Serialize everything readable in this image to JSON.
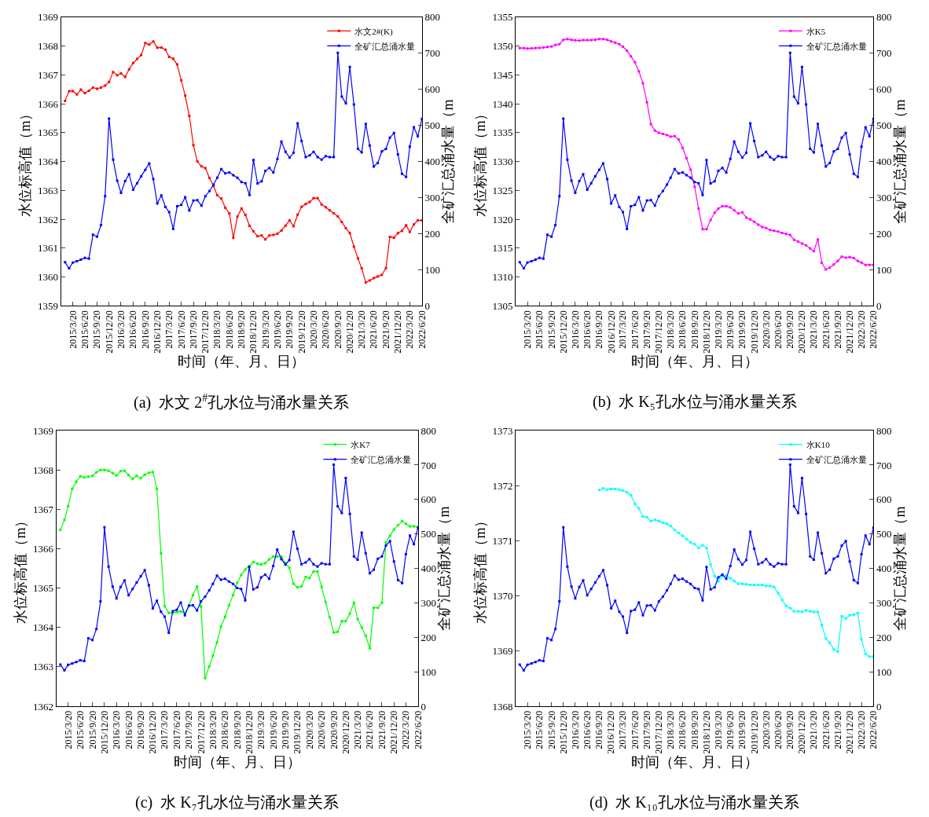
{
  "chart_data": [
    {
      "type": "line",
      "title": "(a)  水文 2$^{#}$孔水位与涌水量关系",
      "xlabel": "时间（年、月、日）",
      "ylabel": "水位标高值（m）",
      "y2label": "全矿汇总涌水量（m",
      "legend": "top right",
      "marker": "square",
      "x": [
        "2015-01-20",
        "2015-02-20",
        "2015-03-20",
        "2015-04-20",
        "2015-05-20",
        "2015-06-20",
        "2015-07-20",
        "2015-08-20",
        "2015-09-20",
        "2015-10-20",
        "2015-11-20",
        "2015-12-20",
        "2016-01-20",
        "2016-02-20",
        "2016-03-20",
        "2016-04-20",
        "2016-05-20",
        "2016-06-20",
        "2016-07-20",
        "2016-08-20",
        "2016-09-20",
        "2016-10-20",
        "2016-11-20",
        "2016-12-20",
        "2017-01-20",
        "2017-02-20",
        "2017-03-20",
        "2017-04-20",
        "2017-05-20",
        "2017-06-20",
        "2017-07-20",
        "2017-08-20",
        "2017-09-20",
        "2017-10-20",
        "2017-11-20",
        "2017-12-20",
        "2018-01-20",
        "2018-02-20",
        "2018-03-20",
        "2018-04-20",
        "2018-05-20",
        "2018-06-20",
        "2018-07-20",
        "2018-08-20",
        "2018-09-20",
        "2018-10-20",
        "2018-11-20",
        "2018-12-20",
        "2019-01-20",
        "2019-02-20",
        "2019-03-20",
        "2019-04-20",
        "2019-05-20",
        "2019-06-20",
        "2019-07-20",
        "2019-08-20",
        "2019-09-20",
        "2019-10-20",
        "2019-11-20",
        "2019-12-20",
        "2020-01-20",
        "2020-02-20",
        "2020-03-20",
        "2020-04-20",
        "2020-05-20",
        "2020-06-20",
        "2020-07-20",
        "2020-08-20",
        "2020-09-20",
        "2020-10-20",
        "2020-11-20",
        "2020-12-20",
        "2021-01-20",
        "2021-02-20",
        "2021-03-20",
        "2021-04-20",
        "2021-05-20",
        "2021-06-20",
        "2021-07-20",
        "2021-08-20",
        "2021-09-20",
        "2021-10-20",
        "2021-11-20",
        "2021-12-20",
        "2022-01-20",
        "2022-02-20",
        "2022-03-20",
        "2022-04-20",
        "2022-05-20",
        "2022-06-20"
      ],
      "xlim": [
        "2014-12-20",
        "2022-06-20"
      ],
      "xticks": [
        {
          "value": "2015-03-20",
          "label": "2015/3/20"
        },
        {
          "value": "2015-06-20",
          "label": "2015/6/20"
        },
        {
          "value": "2015-09-20",
          "label": "2015/9/20"
        },
        {
          "value": "2015-12-20",
          "label": "2015/12/20"
        },
        {
          "value": "2016-03-20",
          "label": "2016/3/20"
        },
        {
          "value": "2016-06-20",
          "label": "2016/6/20"
        },
        {
          "value": "2016-09-20",
          "label": "2016/9/20"
        },
        {
          "value": "2016-12-20",
          "label": "2016/12/20"
        },
        {
          "value": "2017-03-20",
          "label": "2017/3/20"
        },
        {
          "value": "2017-06-20",
          "label": "2017/6/20"
        },
        {
          "value": "2017-09-20",
          "label": "2017/9/20"
        },
        {
          "value": "2017-12-20",
          "label": "2017/12/20"
        },
        {
          "value": "2018-03-20",
          "label": "2018/3/20"
        },
        {
          "value": "2018-06-20",
          "label": "2018/6/20"
        },
        {
          "value": "2018-09-20",
          "label": "2018/9/20"
        },
        {
          "value": "2018-12-20",
          "label": "2018/12/20"
        },
        {
          "value": "2019-03-20",
          "label": "2019/3/20"
        },
        {
          "value": "2019-06-20",
          "label": "2019/6/20"
        },
        {
          "value": "2019-09-20",
          "label": "2019/9/20"
        },
        {
          "value": "2019-12-20",
          "label": "2019/12/20"
        },
        {
          "value": "2020-03-20",
          "label": "2020/3/20"
        },
        {
          "value": "2020-06-20",
          "label": "2020/6/20"
        },
        {
          "value": "2020-09-20",
          "label": "2020/9/20"
        },
        {
          "value": "2020-12-20",
          "label": "2020/12/20"
        },
        {
          "value": "2021-03-20",
          "label": "2021/3/20"
        },
        {
          "value": "2021-06-20",
          "label": "2021/6/20"
        },
        {
          "value": "2021-09-20",
          "label": "2021/9/20"
        },
        {
          "value": "2021-12-20",
          "label": "2021/12/20"
        },
        {
          "value": "2022-03-20",
          "label": "2022/3/20"
        },
        {
          "value": "2022-06-20",
          "label": "2022/6/20"
        }
      ],
      "ylim": [
        1359,
        1369
      ],
      "yticks": [
        1359,
        1360,
        1361,
        1362,
        1363,
        1364,
        1365,
        1366,
        1367,
        1368,
        1369
      ],
      "y2lim": [
        0,
        800
      ],
      "y2ticks": [
        0,
        100,
        200,
        300,
        400,
        500,
        600,
        700,
        800
      ],
      "series": [
        {
          "name": "水文2#(K)",
          "color": "#ff0000",
          "values": [
            1366.1,
            1366.44,
            1366.44,
            1366.32,
            1366.49,
            1366.37,
            1366.45,
            1366.56,
            1366.52,
            1366.56,
            1366.63,
            1366.76,
            1367.1,
            1366.99,
            1367.05,
            1366.93,
            1367.19,
            1367.41,
            1367.55,
            1367.69,
            1368.1,
            1368.05,
            1368.16,
            1367.94,
            1367.95,
            1367.87,
            1367.62,
            1367.56,
            1367.36,
            1366.81,
            1366.28,
            1365.58,
            1364.57,
            1364.0,
            1363.83,
            1363.77,
            1363.43,
            1363.15,
            1362.83,
            1362.72,
            1362.4,
            1362.2,
            1361.36,
            1362.09,
            1362.37,
            1362.15,
            1361.77,
            1361.58,
            1361.41,
            1361.44,
            1361.3,
            1361.44,
            1361.46,
            1361.5,
            1361.61,
            1361.78,
            1361.96,
            1361.76,
            1362.16,
            1362.43,
            1362.53,
            1362.6,
            1362.73,
            1362.73,
            1362.51,
            1362.42,
            1362.31,
            1362.21,
            1362.1,
            1361.91,
            1361.69,
            1361.52,
            1361.05,
            1360.64,
            1360.3,
            1359.81,
            1359.88,
            1359.96,
            1360.02,
            1360.07,
            1360.31,
            1361.39,
            1361.36,
            1361.52,
            1361.6,
            1361.79,
            1361.56,
            1361.82,
            1361.96,
            1361.96
          ]
        },
        {
          "name": "全矿汇总涌水量",
          "color": "#0000ff",
          "axis": "y2",
          "values": [
            121,
            104,
            120,
            124,
            128,
            133,
            131,
            197,
            192,
            224,
            304,
            519,
            405,
            347,
            313,
            346,
            365,
            322,
            340,
            359,
            377,
            395,
            351,
            284,
            306,
            274,
            260,
            213,
            276,
            280,
            301,
            264,
            292,
            293,
            278,
            304,
            318,
            336,
            355,
            379,
            367,
            370,
            362,
            355,
            343,
            340,
            307,
            404,
            339,
            345,
            374,
            382,
            370,
            407,
            455,
            427,
            411,
            424,
            506,
            457,
            412,
            417,
            427,
            412,
            405,
            415,
            412,
            412,
            701,
            580,
            561,
            662,
            558,
            435,
            425,
            504,
            444,
            386,
            396,
            428,
            435,
            466,
            479,
            420,
            366,
            357,
            441,
            495,
            470,
            518
          ]
        }
      ]
    },
    {
      "type": "line",
      "title": "(b)  水 K₅孔水位与涌水量关系",
      "xlabel": "时间（年、月、日）",
      "ylabel": "水位标高值（m）",
      "y2label": "全矿汇总涌水量（m",
      "legend": "top right",
      "marker": "square",
      "x": [
        "2015-01-20",
        "2015-02-20",
        "2015-03-20",
        "2015-04-20",
        "2015-05-20",
        "2015-06-20",
        "2015-07-20",
        "2015-08-20",
        "2015-09-20",
        "2015-10-20",
        "2015-11-20",
        "2015-12-20",
        "2016-01-20",
        "2016-02-20",
        "2016-03-20",
        "2016-04-20",
        "2016-05-20",
        "2016-06-20",
        "2016-07-20",
        "2016-08-20",
        "2016-09-20",
        "2016-10-20",
        "2016-11-20",
        "2016-12-20",
        "2017-01-20",
        "2017-02-20",
        "2017-03-20",
        "2017-04-20",
        "2017-05-20",
        "2017-06-20",
        "2017-07-20",
        "2017-08-20",
        "2017-09-20",
        "2017-10-20",
        "2017-11-20",
        "2017-12-20",
        "2018-01-20",
        "2018-02-20",
        "2018-03-20",
        "2018-04-20",
        "2018-05-20",
        "2018-06-20",
        "2018-07-20",
        "2018-08-20",
        "2018-09-20",
        "2018-10-20",
        "2018-11-20",
        "2018-12-20",
        "2019-01-20",
        "2019-02-20",
        "2019-03-20",
        "2019-04-20",
        "2019-05-20",
        "2019-06-20",
        "2019-07-20",
        "2019-08-20",
        "2019-09-20",
        "2019-10-20",
        "2019-11-20",
        "2019-12-20",
        "2020-01-20",
        "2020-02-20",
        "2020-03-20",
        "2020-04-20",
        "2020-05-20",
        "2020-06-20",
        "2020-07-20",
        "2020-08-20",
        "2020-09-20",
        "2020-10-20",
        "2020-11-20",
        "2020-12-20",
        "2021-01-20",
        "2021-02-20",
        "2021-03-20",
        "2021-04-20",
        "2021-05-20",
        "2021-06-20",
        "2021-07-20",
        "2021-08-20",
        "2021-09-20",
        "2021-10-20",
        "2021-11-20",
        "2021-12-20",
        "2022-01-20",
        "2022-02-20",
        "2022-03-20",
        "2022-04-20",
        "2022-05-20",
        "2022-06-20"
      ],
      "xlim": [
        "2014-12-20",
        "2022-06-20"
      ],
      "xticks": [
        {
          "value": "2015-03-20",
          "label": "2015/3/20"
        },
        {
          "value": "2015-06-20",
          "label": "2015/6/20"
        },
        {
          "value": "2015-09-20",
          "label": "2015/9/20"
        },
        {
          "value": "2015-12-20",
          "label": "2015/12/20"
        },
        {
          "value": "2016-03-20",
          "label": "2016/3/20"
        },
        {
          "value": "2016-06-20",
          "label": "2016/6/20"
        },
        {
          "value": "2016-09-20",
          "label": "2016/9/20"
        },
        {
          "value": "2016-12-20",
          "label": "2016/12/20"
        },
        {
          "value": "2017-03-20",
          "label": "2017/3/20"
        },
        {
          "value": "2017-06-20",
          "label": "2017/6/20"
        },
        {
          "value": "2017-09-20",
          "label": "2017/9/20"
        },
        {
          "value": "2017-12-20",
          "label": "2017/12/20"
        },
        {
          "value": "2018-03-20",
          "label": "2018/3/20"
        },
        {
          "value": "2018-06-20",
          "label": "2018/6/20"
        },
        {
          "value": "2018-09-20",
          "label": "2018/9/20"
        },
        {
          "value": "2018-12-20",
          "label": "2018/12/20"
        },
        {
          "value": "2019-03-20",
          "label": "2019/3/20"
        },
        {
          "value": "2019-06-20",
          "label": "2019/6/20"
        },
        {
          "value": "2019-09-20",
          "label": "2019/9/20"
        },
        {
          "value": "2019-12-20",
          "label": "2019/12/20"
        },
        {
          "value": "2020-03-20",
          "label": "2020/3/20"
        },
        {
          "value": "2020-06-20",
          "label": "2020/6/20"
        },
        {
          "value": "2020-09-20",
          "label": "2020/9/20"
        },
        {
          "value": "2020-12-20",
          "label": "2020/12/20"
        },
        {
          "value": "2021-03-20",
          "label": "2021/3/20"
        },
        {
          "value": "2021-06-20",
          "label": "2021/6/20"
        },
        {
          "value": "2021-09-20",
          "label": "2021/9/20"
        },
        {
          "value": "2021-12-20",
          "label": "2021/12/20"
        },
        {
          "value": "2022-03-20",
          "label": "2022/3/20"
        },
        {
          "value": "2022-06-20",
          "label": "2022/6/20"
        }
      ],
      "ylim": [
        1305,
        1355
      ],
      "yticks": [
        1305,
        1310,
        1315,
        1320,
        1325,
        1330,
        1335,
        1340,
        1345,
        1350,
        1355
      ],
      "y2lim": [
        0,
        800
      ],
      "y2ticks": [
        0,
        100,
        200,
        300,
        400,
        500,
        600,
        700,
        800
      ],
      "series": [
        {
          "name": "水K5",
          "color": "#ff00ff",
          "values": [
            1349.64,
            1349.64,
            1349.55,
            1349.59,
            1349.64,
            1349.68,
            1349.73,
            1349.82,
            1349.91,
            1350.17,
            1350.31,
            1351.07,
            1351.2,
            1351.07,
            1350.98,
            1350.93,
            1351.02,
            1351.02,
            1351.02,
            1351.07,
            1351.2,
            1351.2,
            1351.07,
            1350.8,
            1350.58,
            1350.31,
            1349.86,
            1349.19,
            1348.21,
            1347.18,
            1345.62,
            1343.56,
            1340.26,
            1336.46,
            1335.34,
            1334.98,
            1334.76,
            1334.58,
            1334.31,
            1334.4,
            1333.82,
            1332.35,
            1330.6,
            1328.59,
            1325.64,
            1321.85,
            1318.27,
            1318.27,
            1319.88,
            1321.13,
            1321.85,
            1322.25,
            1322.25,
            1322.07,
            1321.53,
            1321.0,
            1321.22,
            1320.28,
            1319.97,
            1319.57,
            1319.08,
            1318.67,
            1318.49,
            1318.14,
            1318.0,
            1317.87,
            1317.65,
            1317.47,
            1317.29,
            1316.44,
            1316.13,
            1315.81,
            1315.5,
            1314.96,
            1314.47,
            1316.53,
            1312.46,
            1311.3,
            1311.61,
            1312.15,
            1312.77,
            1313.53,
            1313.36,
            1313.44,
            1313.27,
            1312.77,
            1312.51,
            1312.1,
            1312.1,
            1312.1
          ]
        },
        {
          "name": "全矿汇总涌水量",
          "color": "#0000ff",
          "axis": "y2",
          "values": [
            121,
            104,
            120,
            124,
            128,
            133,
            131,
            197,
            192,
            224,
            304,
            519,
            405,
            347,
            313,
            346,
            365,
            322,
            340,
            359,
            377,
            395,
            351,
            284,
            306,
            274,
            260,
            213,
            276,
            280,
            301,
            264,
            292,
            293,
            278,
            304,
            318,
            336,
            355,
            379,
            367,
            370,
            362,
            355,
            343,
            340,
            307,
            404,
            339,
            345,
            374,
            382,
            370,
            407,
            455,
            427,
            411,
            424,
            506,
            457,
            412,
            417,
            427,
            412,
            405,
            415,
            412,
            412,
            701,
            580,
            561,
            662,
            558,
            435,
            425,
            504,
            444,
            386,
            396,
            428,
            435,
            466,
            479,
            420,
            366,
            357,
            441,
            495,
            470,
            518
          ]
        }
      ]
    },
    {
      "type": "line",
      "title": "(c)  水 K₇孔水位与涌水量关系",
      "xlabel": "时间（年、月、日）",
      "ylabel": "水位标高值（m）",
      "y2label": "全矿汇总涌水量（m",
      "legend": "top right",
      "marker": "square",
      "x": [
        "2015-01-20",
        "2015-02-20",
        "2015-03-20",
        "2015-04-20",
        "2015-05-20",
        "2015-06-20",
        "2015-07-20",
        "2015-08-20",
        "2015-09-20",
        "2015-10-20",
        "2015-11-20",
        "2015-12-20",
        "2016-01-20",
        "2016-02-20",
        "2016-03-20",
        "2016-04-20",
        "2016-05-20",
        "2016-06-20",
        "2016-07-20",
        "2016-08-20",
        "2016-09-20",
        "2016-10-20",
        "2016-11-20",
        "2016-12-20",
        "2017-01-20",
        "2017-02-20",
        "2017-03-20",
        "2017-04-20",
        "2017-05-20",
        "2017-06-20",
        "2017-07-20",
        "2017-08-20",
        "2017-09-20",
        "2017-10-20",
        "2017-11-20",
        "2017-12-20",
        "2018-01-20",
        "2018-02-20",
        "2018-03-20",
        "2018-04-20",
        "2018-05-20",
        "2018-06-20",
        "2018-07-20",
        "2018-08-20",
        "2018-09-20",
        "2018-10-20",
        "2018-11-20",
        "2018-12-20",
        "2019-01-20",
        "2019-02-20",
        "2019-03-20",
        "2019-04-20",
        "2019-05-20",
        "2019-06-20",
        "2019-07-20",
        "2019-08-20",
        "2019-09-20",
        "2019-10-20",
        "2019-11-20",
        "2019-12-20",
        "2020-01-20",
        "2020-02-20",
        "2020-03-20",
        "2020-04-20",
        "2020-05-20",
        "2020-06-20",
        "2020-07-20",
        "2020-08-20",
        "2020-09-20",
        "2020-10-20",
        "2020-11-20",
        "2020-12-20",
        "2021-01-20",
        "2021-02-20",
        "2021-03-20",
        "2021-04-20",
        "2021-05-20",
        "2021-06-20",
        "2021-07-20",
        "2021-08-20",
        "2021-09-20",
        "2021-10-20",
        "2021-11-20",
        "2021-12-20",
        "2022-01-20",
        "2022-02-20",
        "2022-03-20",
        "2022-04-20",
        "2022-05-20",
        "2022-06-20"
      ],
      "xlim": [
        "2014-12-20",
        "2022-06-20"
      ],
      "xticks": [
        {
          "value": "2015-03-20",
          "label": "2015/3/20"
        },
        {
          "value": "2015-06-20",
          "label": "2015/6/20"
        },
        {
          "value": "2015-09-20",
          "label": "2015/9/20"
        },
        {
          "value": "2015-12-20",
          "label": "2015/12/20"
        },
        {
          "value": "2016-03-20",
          "label": "2016/3/20"
        },
        {
          "value": "2016-06-20",
          "label": "2016/6/20"
        },
        {
          "value": "2016-09-20",
          "label": "2016/9/20"
        },
        {
          "value": "2016-12-20",
          "label": "2016/12/20"
        },
        {
          "value": "2017-03-20",
          "label": "2017/3/20"
        },
        {
          "value": "2017-06-20",
          "label": "2017/6/20"
        },
        {
          "value": "2017-09-20",
          "label": "2017/9/20"
        },
        {
          "value": "2017-12-20",
          "label": "2017/12/20"
        },
        {
          "value": "2018-03-20",
          "label": "2018/3/20"
        },
        {
          "value": "2018-06-20",
          "label": "2018/6/20"
        },
        {
          "value": "2018-09-20",
          "label": "2018/9/20"
        },
        {
          "value": "2018-12-20",
          "label": "2018/12/20"
        },
        {
          "value": "2019-03-20",
          "label": "2019/3/20"
        },
        {
          "value": "2019-06-20",
          "label": "2019/6/20"
        },
        {
          "value": "2019-09-20",
          "label": "2019/9/20"
        },
        {
          "value": "2019-12-20",
          "label": "2019/12/20"
        },
        {
          "value": "2020-03-20",
          "label": "2020/3/20"
        },
        {
          "value": "2020-06-20",
          "label": "2020/6/20"
        },
        {
          "value": "2020-09-20",
          "label": "2020/9/20"
        },
        {
          "value": "2020-12-20",
          "label": "2020/12/20"
        },
        {
          "value": "2021-03-20",
          "label": "2021/3/20"
        },
        {
          "value": "2021-06-20",
          "label": "2021/6/20"
        },
        {
          "value": "2021-09-20",
          "label": "2021/9/20"
        },
        {
          "value": "2021-12-20",
          "label": "2021/12/20"
        },
        {
          "value": "2022-03-20",
          "label": "2022/3/20"
        },
        {
          "value": "2022-06-20",
          "label": "2022/6/20"
        }
      ],
      "ylim": [
        1362,
        1369
      ],
      "yticks": [
        1362,
        1363,
        1364,
        1365,
        1366,
        1367,
        1368,
        1369
      ],
      "y2lim": [
        0,
        800
      ],
      "y2ticks": [
        0,
        100,
        200,
        300,
        400,
        500,
        600,
        700,
        800
      ],
      "series": [
        {
          "name": "水K7",
          "color": "#00ff00",
          "values": [
            1366.48,
            1366.73,
            1367.08,
            1367.52,
            1367.7,
            1367.84,
            1367.81,
            1367.83,
            1367.85,
            1367.94,
            1368.0,
            1368.0,
            1367.98,
            1367.92,
            1367.86,
            1367.97,
            1367.98,
            1367.87,
            1367.77,
            1367.85,
            1367.79,
            1367.88,
            1367.93,
            1367.95,
            1367.52,
            1365.88,
            1364.54,
            1364.37,
            1364.37,
            1364.39,
            1364.41,
            1364.36,
            1364.56,
            1364.82,
            1365.04,
            1364.53,
            1362.71,
            1363.01,
            1363.28,
            1363.62,
            1364.02,
            1364.27,
            1364.56,
            1364.82,
            1365.13,
            1365.33,
            1365.47,
            1365.56,
            1365.66,
            1365.62,
            1365.6,
            1365.63,
            1365.73,
            1365.8,
            1365.8,
            1365.8,
            1365.64,
            1365.51,
            1365.11,
            1365.02,
            1365.04,
            1365.28,
            1365.25,
            1365.42,
            1365.42,
            1365.03,
            1364.65,
            1364.26,
            1363.87,
            1363.89,
            1364.16,
            1364.16,
            1364.35,
            1364.63,
            1364.21,
            1364.0,
            1363.79,
            1363.47,
            1364.5,
            1364.5,
            1364.63,
            1366.16,
            1366.33,
            1366.49,
            1366.6,
            1366.7,
            1366.63,
            1366.57,
            1366.57,
            1366.55
          ]
        },
        {
          "name": "全矿汇总涌水量",
          "color": "#0000ff",
          "axis": "y2",
          "values": [
            121,
            104,
            120,
            124,
            128,
            133,
            131,
            197,
            192,
            224,
            304,
            519,
            405,
            347,
            313,
            346,
            365,
            322,
            340,
            359,
            377,
            395,
            351,
            284,
            306,
            274,
            260,
            213,
            276,
            280,
            301,
            264,
            292,
            293,
            278,
            304,
            318,
            336,
            355,
            379,
            367,
            370,
            362,
            355,
            343,
            340,
            307,
            404,
            339,
            345,
            374,
            382,
            370,
            407,
            455,
            427,
            411,
            424,
            506,
            457,
            412,
            417,
            427,
            412,
            405,
            415,
            412,
            412,
            701,
            580,
            561,
            662,
            558,
            435,
            425,
            504,
            444,
            386,
            396,
            428,
            435,
            466,
            479,
            420,
            366,
            357,
            441,
            495,
            470,
            518
          ]
        }
      ]
    },
    {
      "type": "line",
      "title": "(d)  水 K₁₀孔水位与涌水量关系",
      "xlabel": "时间（年、月、日）",
      "ylabel": "水位标高值（m）",
      "y2label": "全矿汇总涌水量（m",
      "legend": "top right",
      "marker": "square",
      "x": [
        "2015-01-20",
        "2015-02-20",
        "2015-03-20",
        "2015-04-20",
        "2015-05-20",
        "2015-06-20",
        "2015-07-20",
        "2015-08-20",
        "2015-09-20",
        "2015-10-20",
        "2015-11-20",
        "2015-12-20",
        "2016-01-20",
        "2016-02-20",
        "2016-03-20",
        "2016-04-20",
        "2016-05-20",
        "2016-06-20",
        "2016-07-20",
        "2016-08-20",
        "2016-09-20",
        "2016-10-20",
        "2016-11-20",
        "2016-12-20",
        "2017-01-20",
        "2017-02-20",
        "2017-03-20",
        "2017-04-20",
        "2017-05-20",
        "2017-06-20",
        "2017-07-20",
        "2017-08-20",
        "2017-09-20",
        "2017-10-20",
        "2017-11-20",
        "2017-12-20",
        "2018-01-20",
        "2018-02-20",
        "2018-03-20",
        "2018-04-20",
        "2018-05-20",
        "2018-06-20",
        "2018-07-20",
        "2018-08-20",
        "2018-09-20",
        "2018-10-20",
        "2018-11-20",
        "2018-12-20",
        "2019-01-20",
        "2019-02-20",
        "2019-03-20",
        "2019-04-20",
        "2019-05-20",
        "2019-06-20",
        "2019-07-20",
        "2019-08-20",
        "2019-09-20",
        "2019-10-20",
        "2019-11-20",
        "2019-12-20",
        "2020-01-20",
        "2020-02-20",
        "2020-03-20",
        "2020-04-20",
        "2020-05-20",
        "2020-06-20",
        "2020-07-20",
        "2020-08-20",
        "2020-09-20",
        "2020-10-20",
        "2020-11-20",
        "2020-12-20",
        "2021-01-20",
        "2021-02-20",
        "2021-03-20",
        "2021-04-20",
        "2021-05-20",
        "2021-06-20",
        "2021-07-20",
        "2021-08-20",
        "2021-09-20",
        "2021-10-20",
        "2021-11-20",
        "2021-12-20",
        "2022-01-20",
        "2022-02-20",
        "2022-03-20",
        "2022-04-20",
        "2022-05-20",
        "2022-06-20"
      ],
      "xlim": [
        "2014-12-20",
        "2022-06-20"
      ],
      "xticks": [
        {
          "value": "2015-03-20",
          "label": "2015/3/20"
        },
        {
          "value": "2015-06-20",
          "label": "2015/6/20"
        },
        {
          "value": "2015-09-20",
          "label": "2015/9/20"
        },
        {
          "value": "2015-12-20",
          "label": "2015/12/20"
        },
        {
          "value": "2016-03-20",
          "label": "2016/3/20"
        },
        {
          "value": "2016-06-20",
          "label": "2016/6/20"
        },
        {
          "value": "2016-09-20",
          "label": "2016/9/20"
        },
        {
          "value": "2016-12-20",
          "label": "2016/12/20"
        },
        {
          "value": "2017-03-20",
          "label": "2017/3/20"
        },
        {
          "value": "2017-06-20",
          "label": "2017/6/20"
        },
        {
          "value": "2017-09-20",
          "label": "2017/9/20"
        },
        {
          "value": "2017-12-20",
          "label": "2017/12/20"
        },
        {
          "value": "2018-03-20",
          "label": "2018/3/20"
        },
        {
          "value": "2018-06-20",
          "label": "2018/6/20"
        },
        {
          "value": "2018-09-20",
          "label": "2018/9/20"
        },
        {
          "value": "2018-12-20",
          "label": "2018/12/20"
        },
        {
          "value": "2019-03-20",
          "label": "2019/3/20"
        },
        {
          "value": "2019-06-20",
          "label": "2019/6/20"
        },
        {
          "value": "2019-09-20",
          "label": "2019/9/20"
        },
        {
          "value": "2019-12-20",
          "label": "2019/12/20"
        },
        {
          "value": "2020-03-20",
          "label": "2020/3/20"
        },
        {
          "value": "2020-06-20",
          "label": "2020/6/20"
        },
        {
          "value": "2020-09-20",
          "label": "2020/9/20"
        },
        {
          "value": "2020-12-20",
          "label": "2020/12/20"
        },
        {
          "value": "2021-03-20",
          "label": "2021/3/20"
        },
        {
          "value": "2021-06-20",
          "label": "2021/6/20"
        },
        {
          "value": "2021-09-20",
          "label": "2021/9/20"
        },
        {
          "value": "2021-12-20",
          "label": "2021/12/20"
        },
        {
          "value": "2022-03-20",
          "label": "2022/3/20"
        },
        {
          "value": "2022-06-20",
          "label": "2022/6/20"
        }
      ],
      "ylim": [
        1368,
        1373
      ],
      "yticks": [
        1368,
        1369,
        1370,
        1371,
        1372,
        1373
      ],
      "y2lim": [
        0,
        800
      ],
      "y2ticks": [
        0,
        100,
        200,
        300,
        400,
        500,
        600,
        700,
        800
      ],
      "series": [
        {
          "name": "水K10",
          "color": "#00ffff",
          "values": [
            null,
            null,
            null,
            null,
            null,
            null,
            null,
            null,
            null,
            null,
            null,
            null,
            null,
            null,
            null,
            null,
            null,
            null,
            null,
            null,
            1371.92,
            1371.95,
            1371.93,
            1371.94,
            1371.94,
            1371.93,
            1371.91,
            1371.88,
            1371.83,
            1371.67,
            1371.59,
            1371.44,
            1371.43,
            1371.36,
            1371.38,
            1371.36,
            1371.33,
            1371.31,
            1371.27,
            1371.2,
            1371.14,
            1371.09,
            1371.03,
            1370.97,
            1370.94,
            1370.87,
            1370.92,
            1370.87,
            1370.57,
            1370.36,
            1370.26,
            1370.36,
            1370.37,
            1370.32,
            1370.27,
            1370.22,
            1370.22,
            1370.21,
            1370.2,
            1370.2,
            1370.2,
            1370.2,
            1370.18,
            1370.18,
            1370.16,
            1370.05,
            1369.93,
            1369.82,
            1369.78,
            1369.72,
            1369.72,
            1369.71,
            1369.74,
            1369.72,
            1369.71,
            1369.71,
            1369.47,
            1369.23,
            1369.15,
            1369.03,
            1368.99,
            1369.63,
            1369.59,
            1369.65,
            1369.66,
            1369.69,
            1369.21,
            1368.95,
            1368.9,
            1368.9
          ]
        },
        {
          "name": "全矿汇总涌水量",
          "color": "#0000ff",
          "axis": "y2",
          "values": [
            121,
            104,
            120,
            124,
            128,
            133,
            131,
            197,
            192,
            224,
            304,
            519,
            405,
            347,
            313,
            346,
            365,
            322,
            340,
            359,
            377,
            395,
            351,
            284,
            306,
            274,
            260,
            213,
            276,
            280,
            301,
            264,
            292,
            293,
            278,
            304,
            318,
            336,
            355,
            379,
            367,
            370,
            362,
            355,
            343,
            340,
            307,
            404,
            339,
            345,
            374,
            382,
            370,
            407,
            455,
            427,
            411,
            424,
            506,
            457,
            412,
            417,
            427,
            412,
            405,
            415,
            412,
            412,
            701,
            580,
            561,
            662,
            558,
            435,
            425,
            504,
            444,
            386,
            396,
            428,
            435,
            466,
            479,
            420,
            366,
            357,
            441,
            495,
            470,
            518
          ]
        }
      ]
    }
  ]
}
